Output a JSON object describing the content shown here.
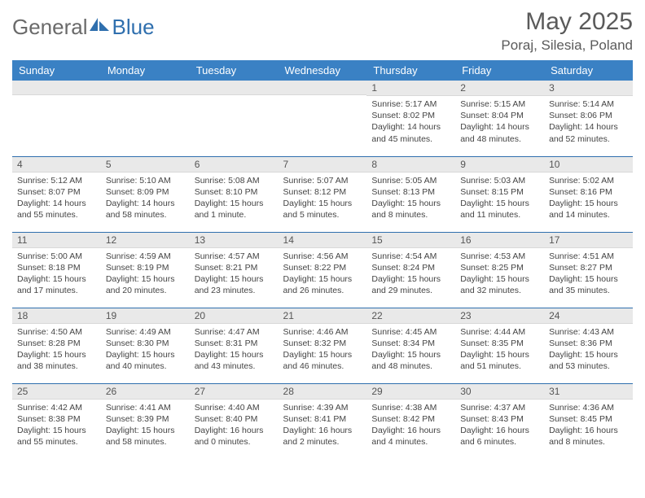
{
  "logo": {
    "general": "General",
    "blue": "Blue"
  },
  "header": {
    "month": "May 2025",
    "location": "Poraj, Silesia, Poland"
  },
  "colors": {
    "header_bg": "#3a81c4",
    "header_text": "#ffffff",
    "daynum_bg": "#e9e9e9",
    "border": "#2f6fae",
    "logo_general": "#6a6a6a",
    "logo_blue": "#2f6fae"
  },
  "dayNames": [
    "Sunday",
    "Monday",
    "Tuesday",
    "Wednesday",
    "Thursday",
    "Friday",
    "Saturday"
  ],
  "weeks": [
    [
      null,
      null,
      null,
      null,
      {
        "n": "1",
        "sr": "Sunrise: 5:17 AM",
        "ss": "Sunset: 8:02 PM",
        "dl": "Daylight: 14 hours and 45 minutes."
      },
      {
        "n": "2",
        "sr": "Sunrise: 5:15 AM",
        "ss": "Sunset: 8:04 PM",
        "dl": "Daylight: 14 hours and 48 minutes."
      },
      {
        "n": "3",
        "sr": "Sunrise: 5:14 AM",
        "ss": "Sunset: 8:06 PM",
        "dl": "Daylight: 14 hours and 52 minutes."
      }
    ],
    [
      {
        "n": "4",
        "sr": "Sunrise: 5:12 AM",
        "ss": "Sunset: 8:07 PM",
        "dl": "Daylight: 14 hours and 55 minutes."
      },
      {
        "n": "5",
        "sr": "Sunrise: 5:10 AM",
        "ss": "Sunset: 8:09 PM",
        "dl": "Daylight: 14 hours and 58 minutes."
      },
      {
        "n": "6",
        "sr": "Sunrise: 5:08 AM",
        "ss": "Sunset: 8:10 PM",
        "dl": "Daylight: 15 hours and 1 minute."
      },
      {
        "n": "7",
        "sr": "Sunrise: 5:07 AM",
        "ss": "Sunset: 8:12 PM",
        "dl": "Daylight: 15 hours and 5 minutes."
      },
      {
        "n": "8",
        "sr": "Sunrise: 5:05 AM",
        "ss": "Sunset: 8:13 PM",
        "dl": "Daylight: 15 hours and 8 minutes."
      },
      {
        "n": "9",
        "sr": "Sunrise: 5:03 AM",
        "ss": "Sunset: 8:15 PM",
        "dl": "Daylight: 15 hours and 11 minutes."
      },
      {
        "n": "10",
        "sr": "Sunrise: 5:02 AM",
        "ss": "Sunset: 8:16 PM",
        "dl": "Daylight: 15 hours and 14 minutes."
      }
    ],
    [
      {
        "n": "11",
        "sr": "Sunrise: 5:00 AM",
        "ss": "Sunset: 8:18 PM",
        "dl": "Daylight: 15 hours and 17 minutes."
      },
      {
        "n": "12",
        "sr": "Sunrise: 4:59 AM",
        "ss": "Sunset: 8:19 PM",
        "dl": "Daylight: 15 hours and 20 minutes."
      },
      {
        "n": "13",
        "sr": "Sunrise: 4:57 AM",
        "ss": "Sunset: 8:21 PM",
        "dl": "Daylight: 15 hours and 23 minutes."
      },
      {
        "n": "14",
        "sr": "Sunrise: 4:56 AM",
        "ss": "Sunset: 8:22 PM",
        "dl": "Daylight: 15 hours and 26 minutes."
      },
      {
        "n": "15",
        "sr": "Sunrise: 4:54 AM",
        "ss": "Sunset: 8:24 PM",
        "dl": "Daylight: 15 hours and 29 minutes."
      },
      {
        "n": "16",
        "sr": "Sunrise: 4:53 AM",
        "ss": "Sunset: 8:25 PM",
        "dl": "Daylight: 15 hours and 32 minutes."
      },
      {
        "n": "17",
        "sr": "Sunrise: 4:51 AM",
        "ss": "Sunset: 8:27 PM",
        "dl": "Daylight: 15 hours and 35 minutes."
      }
    ],
    [
      {
        "n": "18",
        "sr": "Sunrise: 4:50 AM",
        "ss": "Sunset: 8:28 PM",
        "dl": "Daylight: 15 hours and 38 minutes."
      },
      {
        "n": "19",
        "sr": "Sunrise: 4:49 AM",
        "ss": "Sunset: 8:30 PM",
        "dl": "Daylight: 15 hours and 40 minutes."
      },
      {
        "n": "20",
        "sr": "Sunrise: 4:47 AM",
        "ss": "Sunset: 8:31 PM",
        "dl": "Daylight: 15 hours and 43 minutes."
      },
      {
        "n": "21",
        "sr": "Sunrise: 4:46 AM",
        "ss": "Sunset: 8:32 PM",
        "dl": "Daylight: 15 hours and 46 minutes."
      },
      {
        "n": "22",
        "sr": "Sunrise: 4:45 AM",
        "ss": "Sunset: 8:34 PM",
        "dl": "Daylight: 15 hours and 48 minutes."
      },
      {
        "n": "23",
        "sr": "Sunrise: 4:44 AM",
        "ss": "Sunset: 8:35 PM",
        "dl": "Daylight: 15 hours and 51 minutes."
      },
      {
        "n": "24",
        "sr": "Sunrise: 4:43 AM",
        "ss": "Sunset: 8:36 PM",
        "dl": "Daylight: 15 hours and 53 minutes."
      }
    ],
    [
      {
        "n": "25",
        "sr": "Sunrise: 4:42 AM",
        "ss": "Sunset: 8:38 PM",
        "dl": "Daylight: 15 hours and 55 minutes."
      },
      {
        "n": "26",
        "sr": "Sunrise: 4:41 AM",
        "ss": "Sunset: 8:39 PM",
        "dl": "Daylight: 15 hours and 58 minutes."
      },
      {
        "n": "27",
        "sr": "Sunrise: 4:40 AM",
        "ss": "Sunset: 8:40 PM",
        "dl": "Daylight: 16 hours and 0 minutes."
      },
      {
        "n": "28",
        "sr": "Sunrise: 4:39 AM",
        "ss": "Sunset: 8:41 PM",
        "dl": "Daylight: 16 hours and 2 minutes."
      },
      {
        "n": "29",
        "sr": "Sunrise: 4:38 AM",
        "ss": "Sunset: 8:42 PM",
        "dl": "Daylight: 16 hours and 4 minutes."
      },
      {
        "n": "30",
        "sr": "Sunrise: 4:37 AM",
        "ss": "Sunset: 8:43 PM",
        "dl": "Daylight: 16 hours and 6 minutes."
      },
      {
        "n": "31",
        "sr": "Sunrise: 4:36 AM",
        "ss": "Sunset: 8:45 PM",
        "dl": "Daylight: 16 hours and 8 minutes."
      }
    ]
  ]
}
